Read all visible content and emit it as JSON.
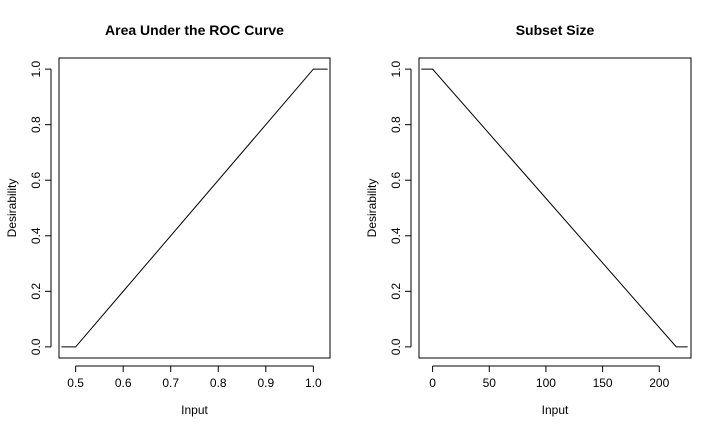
{
  "chart_data": [
    {
      "type": "line",
      "title": "Area Under the ROC Curve",
      "xlabel": "Input",
      "ylabel": "Desirability",
      "xlim": [
        0.465,
        1.035
      ],
      "ylim": [
        -0.04,
        1.04
      ],
      "xticks": [
        0.5,
        0.6,
        0.7,
        0.8,
        0.9,
        1.0
      ],
      "xtick_labels": [
        "0.5",
        "0.6",
        "0.7",
        "0.8",
        "0.9",
        "1.0"
      ],
      "yticks": [
        0.0,
        0.2,
        0.4,
        0.6,
        0.8,
        1.0
      ],
      "ytick_labels": [
        "0.0",
        "0.2",
        "0.4",
        "0.6",
        "0.8",
        "1.0"
      ],
      "grid": false,
      "x": [
        0.47,
        0.5,
        1.0,
        1.03
      ],
      "y": [
        0.0,
        0.0,
        1.0,
        1.0
      ]
    },
    {
      "type": "line",
      "title": "Subset Size",
      "xlabel": "Input",
      "ylabel": "Desirability",
      "xlim": [
        -12,
        228
      ],
      "ylim": [
        -0.04,
        1.04
      ],
      "xticks": [
        0,
        50,
        100,
        150,
        200
      ],
      "xtick_labels": [
        "0",
        "50",
        "100",
        "150",
        "200"
      ],
      "yticks": [
        0.0,
        0.2,
        0.4,
        0.6,
        0.8,
        1.0
      ],
      "ytick_labels": [
        "0.0",
        "0.2",
        "0.4",
        "0.6",
        "0.8",
        "1.0"
      ],
      "grid": false,
      "x": [
        -10,
        0,
        215,
        225
      ],
      "y": [
        1.0,
        1.0,
        0.0,
        0.0
      ]
    }
  ]
}
